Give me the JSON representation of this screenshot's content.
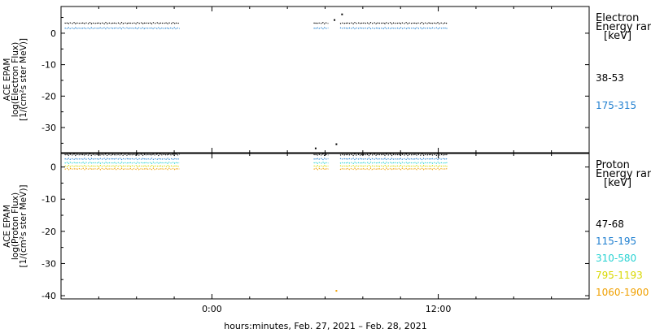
{
  "chart_data": [
    {
      "type": "scatter",
      "panel": "electron",
      "ylabel": [
        "ACE EPAM",
        "log(Electron Flux)",
        "[1/(cm²s ster MeV)]"
      ],
      "ylim": [
        -38,
        8.5
      ],
      "yticks": [
        0,
        -10,
        -20,
        -30
      ],
      "legend_title": [
        "Electron",
        "Energy ran",
        "[keV]"
      ],
      "series": [
        {
          "name": "38-53",
          "color": "#000000",
          "level": 3.2,
          "segments": [
            [
              -7.8,
              -1.7
            ],
            [
              5.4,
              6.2
            ],
            [
              6.8,
              12.5
            ]
          ],
          "outliers": [
            [
              6.5,
              4.2
            ],
            [
              6.9,
              6.0
            ],
            [
              6.6,
              -35.3
            ]
          ]
        },
        {
          "name": "175-315",
          "color": "#1f7fd0",
          "level": 1.6,
          "segments": [
            [
              -7.8,
              -1.7
            ],
            [
              5.4,
              6.2
            ],
            [
              6.8,
              12.5
            ]
          ],
          "outliers": []
        }
      ]
    },
    {
      "type": "scatter",
      "panel": "proton",
      "ylabel": [
        "ACE EPAM",
        "log(Proton Flux)",
        "[1/(cm²s ster MeV)]"
      ],
      "ylim": [
        -41,
        4.2
      ],
      "yticks": [
        0,
        -10,
        -20,
        -30,
        -40
      ],
      "legend_title": [
        "Proton",
        "Energy ran",
        "[keV]"
      ],
      "series": [
        {
          "name": "47-68",
          "color": "#000000",
          "level": 3.8,
          "segments": [
            [
              -7.8,
              -1.7
            ],
            [
              5.4,
              6.2
            ],
            [
              6.8,
              12.5
            ]
          ],
          "outliers": [
            [
              5.5,
              5.8
            ]
          ]
        },
        {
          "name": "115-195",
          "color": "#1f7fd0",
          "level": 2.5,
          "segments": [
            [
              -7.8,
              -1.7
            ],
            [
              5.4,
              6.2
            ],
            [
              6.8,
              12.5
            ]
          ],
          "outliers": []
        },
        {
          "name": "310-580",
          "color": "#28d2d2",
          "level": 1.3,
          "segments": [
            [
              -7.8,
              -1.7
            ],
            [
              5.4,
              6.2
            ],
            [
              6.8,
              12.5
            ]
          ],
          "outliers": []
        },
        {
          "name": "795-1193",
          "color": "#d8d800",
          "level": 0.3,
          "segments": [
            [
              -7.8,
              -1.7
            ],
            [
              5.4,
              6.2
            ],
            [
              6.8,
              12.5
            ]
          ],
          "outliers": []
        },
        {
          "name": "1060-1900",
          "color": "#f0a000",
          "level": -0.6,
          "segments": [
            [
              -7.8,
              -1.7
            ],
            [
              5.4,
              6.2
            ],
            [
              6.8,
              12.5
            ]
          ],
          "outliers": [
            [
              6.6,
              -38.5
            ]
          ]
        }
      ]
    }
  ],
  "x_axis": {
    "range_hours": [
      -8,
      20
    ],
    "ticks": [
      {
        "hour": 0,
        "label": "0:00"
      },
      {
        "hour": 12,
        "label": "12:00"
      }
    ],
    "label": "hours:minutes, Feb. 27, 2021 – Feb. 28, 2021"
  }
}
